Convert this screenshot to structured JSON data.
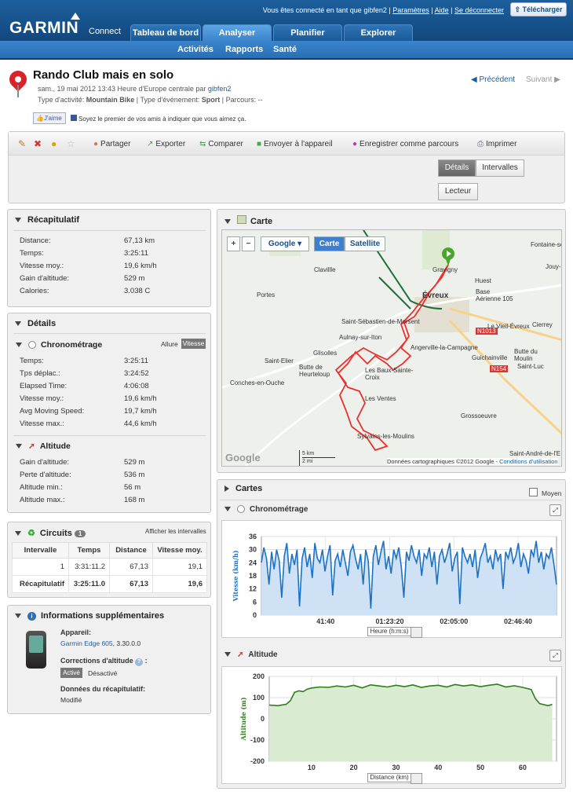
{
  "header": {
    "logo": "GARMIN",
    "logo_sub": "Connect",
    "logged_prefix": "Vous êtes connecté en tant que",
    "user": "gibfen2",
    "settings": "Paramètres",
    "help": "Aide",
    "logout": "Se déconnecter",
    "download": "Télécharger",
    "tabs": [
      "Tableau de bord",
      "Analyser",
      "Planifier",
      "Explorer"
    ],
    "subtabs": [
      "Activités",
      "Rapports",
      "Santé"
    ]
  },
  "activity": {
    "title": "Rando Club mais en solo",
    "date_line": "sam., 19 mai 2012 13:43 Heure d'Europe centrale par",
    "author": "gibfen2",
    "type_label": "Type d'activité:",
    "type_value": "Mountain Bike",
    "event_label": "| Type d'événement:",
    "event_value": "Sport",
    "course_label": "| Parcours: --",
    "prev": "Précédent",
    "next": "Suivant",
    "like": "J'aime",
    "like_text": "Soyez le premier de vos amis à indiquer que vous aimez ça."
  },
  "toolbar": {
    "items": [
      "Partager",
      "Exporter",
      "Comparer",
      "Envoyer à l'appareil",
      "Enregistrer comme parcours",
      "Imprimer"
    ],
    "details": "Détails",
    "intervals": "Intervalles",
    "player": "Lecteur"
  },
  "summary": {
    "title": "Récapitulatif",
    "rows": [
      {
        "label": "Distance:",
        "value": "67,13 km"
      },
      {
        "label": "Temps:",
        "value": "3:25:11"
      },
      {
        "label": "Vitesse moy.:",
        "value": "19,6 km/h"
      },
      {
        "label": "Gain d'altitude:",
        "value": "529 m"
      },
      {
        "label": "Calories:",
        "value": "3.038 C"
      }
    ]
  },
  "details": {
    "title": "Détails",
    "timing_title": "Chronométrage",
    "pace": "Allure",
    "speed": "Vitesse",
    "timing_rows": [
      {
        "label": "Temps:",
        "value": "3:25:11"
      },
      {
        "label": "Tps déplac.:",
        "value": "3:24:52"
      },
      {
        "label": "Elapsed Time:",
        "value": "4:06:08"
      },
      {
        "label": "Vitesse moy.:",
        "value": "19,6 km/h"
      },
      {
        "label": "Avg Moving Speed:",
        "value": "19,7 km/h"
      },
      {
        "label": "Vitesse max.:",
        "value": "44,6 km/h"
      }
    ],
    "alt_title": "Altitude",
    "alt_rows": [
      {
        "label": "Gain d'altitude:",
        "value": "529 m"
      },
      {
        "label": "Perte d'altitude:",
        "value": "536 m"
      },
      {
        "label": "Altitude min.:",
        "value": "56 m"
      },
      {
        "label": "Altitude max.:",
        "value": "168 m"
      }
    ]
  },
  "laps": {
    "title": "Circuits",
    "count": "1",
    "show": "Afficher les intervalles",
    "headers": [
      "Intervalle",
      "Temps",
      "Distance",
      "Vitesse moy."
    ],
    "rows": [
      [
        "1",
        "3:31:11.2",
        "67,13",
        "19,1"
      ],
      [
        "Récapitulatif",
        "3:25:11.0",
        "67,13",
        "19,6"
      ]
    ]
  },
  "info": {
    "title": "Informations supplémentaires",
    "device_label": "Appareil:",
    "device": "Garmin Edge 605",
    "device_ver": ", 3.30.0.0",
    "alt_corr": "Corrections d'altitude",
    "on": "Activé",
    "off": "Désactivé",
    "summary_data": "Données du récapitulatif:",
    "modified": "Modifié"
  },
  "map": {
    "title": "Carte",
    "provider": "Google",
    "map_btn": "Carte",
    "sat_btn": "Satellite",
    "copyright": "Données cartographiques ©2012 Google -",
    "terms": "Conditions d'utilisation",
    "scale_km": "5 km",
    "scale_mi": "2 mi",
    "logo": "Google",
    "places": [
      "Fontaine-sous-Jouy",
      "Clavillle",
      "Gravigny",
      "Jouy-s",
      "Huest",
      "Portes",
      "Évreux",
      "Base Aérienne 105",
      "Saint-Sébastien-de-Morsent",
      "N1013",
      "Le Vieil-Évreux",
      "Cierrey",
      "Aulnay-sur-Iton",
      "Angerville-la-Campagne",
      "Saint-Elier",
      "Glisolles",
      "Guichainville",
      "Butte du Moulin",
      "Butte de Heurteloup",
      "Les Baux-Sainte-Croix",
      "N154",
      "Saint-Luc",
      "Conches-en-Ouche",
      "Les Ventes",
      "Grossoeuvre",
      "Sylvains-les-Moulins",
      "Saint-André-de-l'E"
    ]
  },
  "charts_panel": {
    "title": "Cartes",
    "avg": "Moyen"
  },
  "chart_data": [
    {
      "type": "area",
      "title": "Chronométrage",
      "ylabel": "Vitesse (km/h)",
      "xlabel": "Heure (h:m:s)",
      "ylim": [
        0,
        36
      ],
      "yticks": [
        0,
        6,
        12,
        18,
        24,
        30,
        36
      ],
      "xticks": [
        "41:40",
        "01:23:20",
        "02:05:00",
        "02:46:40"
      ],
      "color": "#1b72c6",
      "series": [
        {
          "values": [
            24,
            31,
            26,
            14,
            29,
            21,
            30,
            25,
            8,
            27,
            33,
            19,
            28,
            23,
            30,
            4,
            26,
            31,
            22,
            28,
            17,
            33,
            26,
            24,
            30,
            20,
            27,
            32,
            9,
            25,
            28,
            22,
            30,
            24,
            18,
            29,
            32,
            26,
            21,
            28,
            14,
            30,
            25,
            3,
            27,
            32,
            23,
            29,
            34,
            21,
            27,
            19,
            30,
            26,
            31,
            22,
            8,
            29,
            25,
            32,
            27,
            24,
            30,
            18,
            28,
            26,
            31,
            22,
            29,
            14,
            27,
            30,
            24,
            28,
            33,
            20,
            26,
            29,
            5,
            31,
            27,
            24,
            28,
            22,
            30,
            17,
            26,
            29,
            33,
            24,
            27,
            21,
            30,
            25,
            28,
            12,
            29,
            26,
            31,
            24,
            27,
            33,
            22,
            28,
            25,
            19,
            30,
            27,
            34,
            24,
            29,
            21,
            28,
            26,
            31,
            23,
            14
          ]
        }
      ]
    },
    {
      "type": "area",
      "title": "Altitude",
      "ylabel": "Altitude (m)",
      "xlabel": "Distance (km)",
      "ylim": [
        -200,
        200
      ],
      "yticks": [
        -200,
        -100,
        0,
        100,
        200
      ],
      "xticks": [
        10,
        20,
        30,
        40,
        50,
        60
      ],
      "xlim": [
        0,
        68
      ],
      "color": "#2e7d1a",
      "series": [
        {
          "x": [
            0,
            2,
            4,
            5,
            6,
            7,
            8,
            9,
            10,
            12,
            14,
            16,
            18,
            20,
            22,
            24,
            26,
            28,
            30,
            32,
            34,
            36,
            38,
            40,
            42,
            44,
            46,
            48,
            50,
            52,
            54,
            56,
            58,
            60,
            62,
            63,
            64,
            66,
            67
          ],
          "values": [
            65,
            62,
            68,
            85,
            125,
            132,
            128,
            140,
            145,
            150,
            148,
            155,
            150,
            158,
            146,
            160,
            155,
            150,
            158,
            152,
            160,
            148,
            155,
            158,
            150,
            162,
            155,
            160,
            152,
            158,
            163,
            150,
            156,
            148,
            138,
            95,
            72,
            62,
            68
          ]
        }
      ]
    }
  ]
}
